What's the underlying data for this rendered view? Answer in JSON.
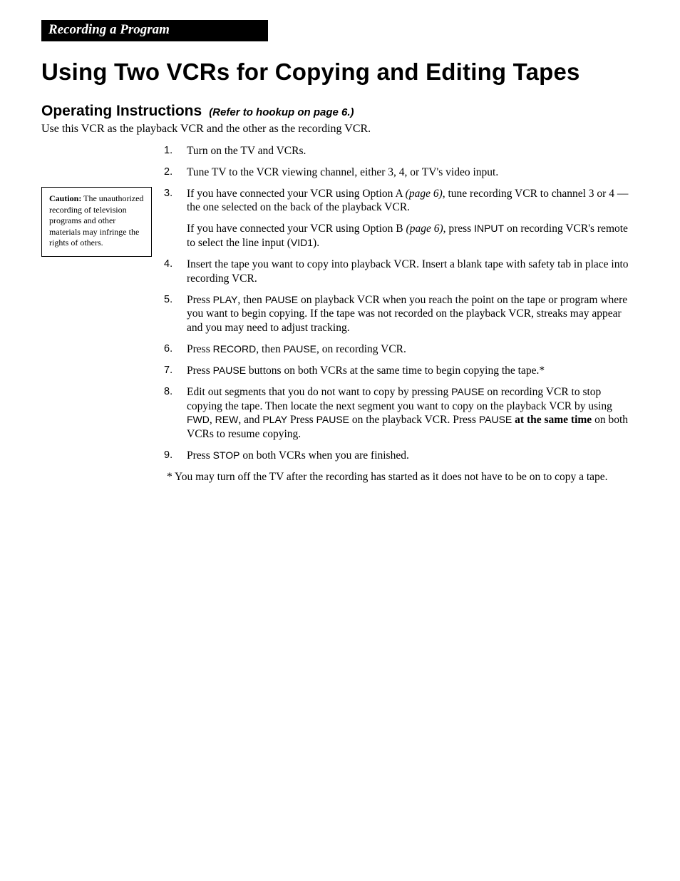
{
  "colors": {
    "background": "#ffffff",
    "text": "#000000",
    "tab_bg": "#000000",
    "tab_text": "#ffffff",
    "box_border": "#000000"
  },
  "typography": {
    "body_family": "Palatino Linotype, Book Antiqua, Palatino, Georgia, serif",
    "heading_family": "Arial, Helvetica Neue, Helvetica, sans-serif",
    "title_size_pt": 33,
    "subhead_size_pt": 21,
    "subhead_paren_size_pt": 15,
    "body_size_pt": 15.5,
    "caution_size_pt": 12,
    "step_number_size_pt": 14.5
  },
  "header": {
    "section_tab": "Recording a Program",
    "title": "Using Two VCRs for Copying and Editing Tapes"
  },
  "subhead": {
    "label": "Operating Instructions",
    "paren": "(Refer to hookup on page 6.)"
  },
  "intro": "Use this VCR as the playback VCR and the other as the recording VCR.",
  "caution": {
    "label": "Caution:",
    "text": "  The unauthorized recording of television programs and other materials may infringe the rights of others."
  },
  "steps": [
    {
      "n": 1,
      "segments": [
        {
          "t": "Turn on the TV and VCRs."
        }
      ]
    },
    {
      "n": 2,
      "segments": [
        {
          "t": "Tune TV to the VCR viewing channel, either 3, 4, or TV's video input."
        }
      ]
    },
    {
      "n": 3,
      "segments": [
        {
          "t": "If you have connected your VCR using Option A "
        },
        {
          "t": "(page 6)",
          "style": "ital"
        },
        {
          "t": ", tune recording VCR to channel 3 or 4 — the one selected on the back of the playback VCR."
        }
      ],
      "sub_segments": [
        {
          "t": "If you have connected your VCR using Option B "
        },
        {
          "t": "(page 6),",
          "style": "ital"
        },
        {
          "t": " press "
        },
        {
          "t": "INPUT",
          "style": "btn"
        },
        {
          "t": " on recording VCR's remote to select the line input ("
        },
        {
          "t": "VID1",
          "style": "btn"
        },
        {
          "t": ")."
        }
      ]
    },
    {
      "n": 4,
      "segments": [
        {
          "t": "Insert the tape you want to copy into playback VCR.  Insert a blank tape with safety tab in place into recording VCR."
        }
      ]
    },
    {
      "n": 5,
      "segments": [
        {
          "t": "Press "
        },
        {
          "t": "PLAY",
          "style": "btn"
        },
        {
          "t": ", then "
        },
        {
          "t": "PAUSE",
          "style": "btn"
        },
        {
          "t": " on playback VCR when you reach the point on the tape or program where you want to begin copying.  If the tape was not recorded on the playback VCR, streaks may appear and you may need to adjust tracking."
        }
      ]
    },
    {
      "n": 6,
      "segments": [
        {
          "t": "Press "
        },
        {
          "t": "RECORD",
          "style": "btn"
        },
        {
          "t": ", then "
        },
        {
          "t": "PAUSE",
          "style": "btn"
        },
        {
          "t": ", on recording VCR."
        }
      ]
    },
    {
      "n": 7,
      "segments": [
        {
          "t": "Press "
        },
        {
          "t": "PAUSE",
          "style": "btn"
        },
        {
          "t": " buttons on both VCRs at the same time to begin copying the tape.*"
        }
      ]
    },
    {
      "n": 8,
      "segments": [
        {
          "t": "Edit out segments that you do not want to copy by pressing "
        },
        {
          "t": "PAUSE",
          "style": "btn"
        },
        {
          "t": " on recording VCR to stop copying the tape.  Then locate the next segment you want to copy on the playback VCR by using "
        },
        {
          "t": "FWD",
          "style": "btn"
        },
        {
          "t": ", "
        },
        {
          "t": "REW",
          "style": "btn"
        },
        {
          "t": ", and "
        },
        {
          "t": "PLAY",
          "style": "btn"
        },
        {
          "t": "   Press "
        },
        {
          "t": "PAUSE",
          "style": "btn"
        },
        {
          "t": " on the playback VCR.  Press "
        },
        {
          "t": "PAUSE",
          "style": "btn"
        },
        {
          "t": " "
        },
        {
          "t": "at the same time",
          "style": "bold"
        },
        {
          "t": " on both VCRs to resume copying."
        }
      ]
    },
    {
      "n": 9,
      "segments": [
        {
          "t": "Press "
        },
        {
          "t": "STOP",
          "style": "btn"
        },
        {
          "t": " on both VCRs when you are finished."
        }
      ]
    }
  ],
  "footnote": "* You may turn off the TV after the recording has started as it does not have to be on to copy a tape."
}
